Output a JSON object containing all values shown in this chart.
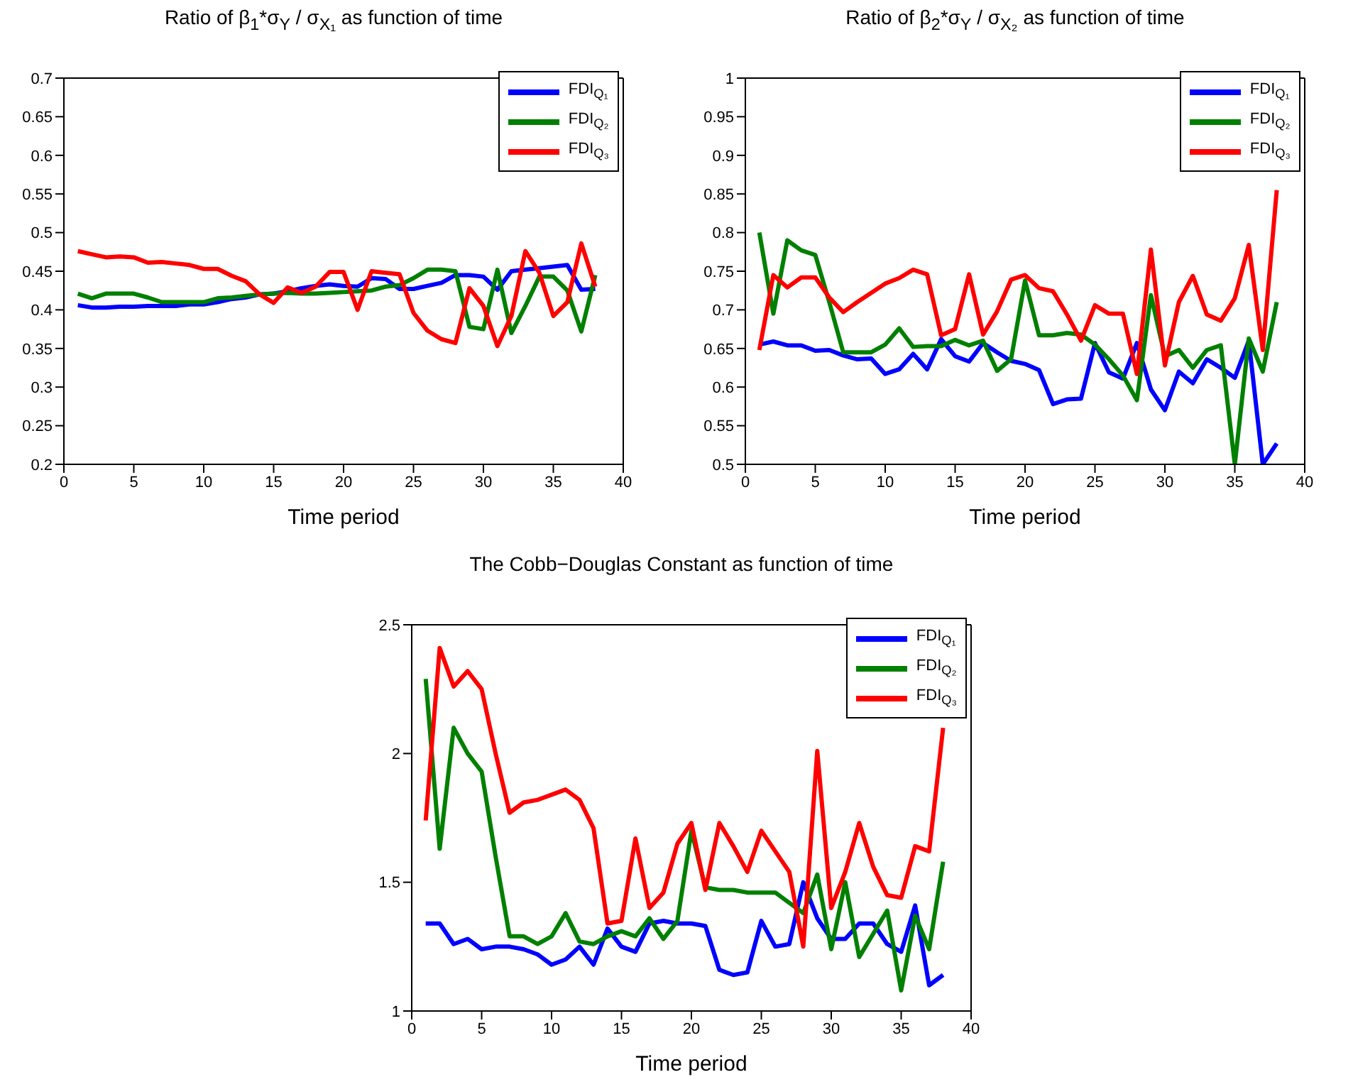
{
  "chart_data": [
    {
      "type": "line",
      "title": "Ratio of β$_{1}$*σ$_{Y}$ / σ$_{X₁}$ as function of time",
      "xlabel": "Time period",
      "xlim": [
        0,
        40
      ],
      "xticks": [
        0,
        5,
        10,
        15,
        20,
        25,
        30,
        35,
        40
      ],
      "ylim": [
        0.2,
        0.7
      ],
      "yticks": [
        0.2,
        0.25,
        0.3,
        0.35,
        0.4,
        0.45,
        0.5,
        0.55,
        0.6,
        0.65,
        0.7
      ],
      "legend": "top right",
      "x": [
        1,
        2,
        3,
        4,
        5,
        6,
        7,
        8,
        9,
        10,
        11,
        12,
        13,
        14,
        15,
        16,
        17,
        18,
        19,
        20,
        21,
        22,
        23,
        24,
        25,
        26,
        27,
        28,
        29,
        30,
        31,
        32,
        33,
        34,
        35,
        36,
        37,
        38
      ],
      "series": [
        {
          "name": "FDI$_{Q₁}$",
          "color": "#0000ff",
          "values": [
            0.406,
            0.403,
            0.403,
            0.404,
            0.404,
            0.405,
            0.405,
            0.405,
            0.407,
            0.407,
            0.41,
            0.414,
            0.416,
            0.42,
            0.421,
            0.424,
            0.428,
            0.431,
            0.433,
            0.431,
            0.43,
            0.441,
            0.44,
            0.427,
            0.427,
            0.431,
            0.435,
            0.445,
            0.445,
            0.443,
            0.426,
            0.45,
            0.452,
            0.454,
            0.456,
            0.458,
            0.426,
            0.427
          ]
        },
        {
          "name": "FDI$_{Q₂}$",
          "color": "#008000",
          "values": [
            0.421,
            0.415,
            0.421,
            0.421,
            0.421,
            0.416,
            0.41,
            0.41,
            0.41,
            0.41,
            0.415,
            0.416,
            0.418,
            0.42,
            0.421,
            0.422,
            0.421,
            0.421,
            0.422,
            0.423,
            0.424,
            0.425,
            0.43,
            0.432,
            0.441,
            0.452,
            0.452,
            0.45,
            0.378,
            0.375,
            0.452,
            0.37,
            0.405,
            0.443,
            0.443,
            0.425,
            0.372,
            0.445
          ]
        },
        {
          "name": "FDI$_{Q₃}$",
          "color": "#ff0000",
          "values": [
            0.476,
            0.472,
            0.468,
            0.469,
            0.468,
            0.461,
            0.462,
            0.46,
            0.458,
            0.453,
            0.453,
            0.444,
            0.437,
            0.42,
            0.409,
            0.429,
            0.422,
            0.43,
            0.449,
            0.449,
            0.4,
            0.45,
            0.448,
            0.446,
            0.396,
            0.373,
            0.362,
            0.357,
            0.428,
            0.405,
            0.353,
            0.392,
            0.476,
            0.448,
            0.392,
            0.41,
            0.486,
            0.43
          ]
        }
      ]
    },
    {
      "type": "line",
      "title": "Ratio of β$_{2}$*σ$_{Y}$ / σ$_{X₂}$ as function of time",
      "xlabel": "Time period",
      "xlim": [
        0,
        40
      ],
      "xticks": [
        0,
        5,
        10,
        15,
        20,
        25,
        30,
        35,
        40
      ],
      "ylim": [
        0.5,
        1
      ],
      "yticks": [
        0.5,
        0.55,
        0.6,
        0.65,
        0.7,
        0.75,
        0.8,
        0.85,
        0.9,
        0.95,
        1
      ],
      "legend": "top right",
      "x": [
        1,
        2,
        3,
        4,
        5,
        6,
        7,
        8,
        9,
        10,
        11,
        12,
        13,
        14,
        15,
        16,
        17,
        18,
        19,
        20,
        21,
        22,
        23,
        24,
        25,
        26,
        27,
        28,
        29,
        30,
        31,
        32,
        33,
        34,
        35,
        36,
        37,
        38
      ],
      "series": [
        {
          "name": "FDI$_{Q₁}$",
          "color": "#0000ff",
          "values": [
            0.655,
            0.659,
            0.654,
            0.654,
            0.647,
            0.648,
            0.641,
            0.636,
            0.637,
            0.617,
            0.623,
            0.643,
            0.623,
            0.662,
            0.64,
            0.633,
            0.657,
            0.645,
            0.634,
            0.63,
            0.622,
            0.578,
            0.584,
            0.585,
            0.657,
            0.619,
            0.611,
            0.657,
            0.597,
            0.57,
            0.62,
            0.605,
            0.636,
            0.625,
            0.612,
            0.66,
            0.5,
            0.527
          ]
        },
        {
          "name": "FDI$_{Q₂}$",
          "color": "#008000",
          "values": [
            0.8,
            0.695,
            0.79,
            0.777,
            0.771,
            0.71,
            0.645,
            0.645,
            0.645,
            0.655,
            0.676,
            0.652,
            0.653,
            0.653,
            0.661,
            0.654,
            0.66,
            0.621,
            0.636,
            0.738,
            0.667,
            0.667,
            0.67,
            0.668,
            0.655,
            0.636,
            0.615,
            0.583,
            0.719,
            0.64,
            0.648,
            0.625,
            0.648,
            0.654,
            0.5,
            0.663,
            0.62,
            0.71
          ]
        },
        {
          "name": "FDI$_{Q₃}$",
          "color": "#ff0000",
          "values": [
            0.648,
            0.745,
            0.729,
            0.742,
            0.742,
            0.716,
            0.697,
            0.71,
            0.722,
            0.734,
            0.741,
            0.752,
            0.746,
            0.667,
            0.675,
            0.746,
            0.668,
            0.698,
            0.739,
            0.745,
            0.728,
            0.724,
            0.694,
            0.66,
            0.706,
            0.695,
            0.695,
            0.617,
            0.778,
            0.628,
            0.71,
            0.744,
            0.694,
            0.686,
            0.715,
            0.784,
            0.648,
            0.855
          ]
        }
      ]
    },
    {
      "type": "line",
      "title": "The Cobb−Douglas Constant as function of time",
      "xlabel": "Time period",
      "xlim": [
        0,
        40
      ],
      "xticks": [
        0,
        5,
        10,
        15,
        20,
        25,
        30,
        35,
        40
      ],
      "ylim": [
        1,
        2.5
      ],
      "yticks": [
        1,
        1.5,
        2,
        2.5
      ],
      "legend": "top right",
      "x": [
        1,
        2,
        3,
        4,
        5,
        6,
        7,
        8,
        9,
        10,
        11,
        12,
        13,
        14,
        15,
        16,
        17,
        18,
        19,
        20,
        21,
        22,
        23,
        24,
        25,
        26,
        27,
        28,
        29,
        30,
        31,
        32,
        33,
        34,
        35,
        36,
        37,
        38
      ],
      "series": [
        {
          "name": "FDI$_{Q₁}$",
          "color": "#0000ff",
          "values": [
            1.34,
            1.34,
            1.26,
            1.28,
            1.24,
            1.25,
            1.25,
            1.24,
            1.22,
            1.18,
            1.2,
            1.25,
            1.18,
            1.32,
            1.25,
            1.23,
            1.34,
            1.35,
            1.34,
            1.34,
            1.33,
            1.16,
            1.14,
            1.15,
            1.35,
            1.25,
            1.26,
            1.5,
            1.36,
            1.28,
            1.28,
            1.34,
            1.34,
            1.26,
            1.23,
            1.41,
            1.1,
            1.14
          ]
        },
        {
          "name": "FDI$_{Q₂}$",
          "color": "#008000",
          "values": [
            2.29,
            1.63,
            2.1,
            2.0,
            1.93,
            1.6,
            1.29,
            1.29,
            1.26,
            1.29,
            1.38,
            1.27,
            1.26,
            1.29,
            1.31,
            1.29,
            1.36,
            1.28,
            1.35,
            1.7,
            1.48,
            1.47,
            1.47,
            1.46,
            1.46,
            1.46,
            1.42,
            1.38,
            1.53,
            1.24,
            1.5,
            1.21,
            1.3,
            1.39,
            1.08,
            1.37,
            1.24,
            1.58
          ]
        },
        {
          "name": "FDI$_{Q₃}$",
          "color": "#ff0000",
          "values": [
            1.74,
            2.41,
            2.26,
            2.32,
            2.25,
            2.0,
            1.77,
            1.81,
            1.82,
            1.84,
            1.86,
            1.82,
            1.71,
            1.34,
            1.35,
            1.67,
            1.4,
            1.46,
            1.65,
            1.73,
            1.47,
            1.73,
            1.64,
            1.54,
            1.7,
            1.62,
            1.54,
            1.25,
            2.01,
            1.4,
            1.54,
            1.73,
            1.56,
            1.45,
            1.44,
            1.64,
            1.62,
            2.1
          ]
        }
      ]
    }
  ]
}
